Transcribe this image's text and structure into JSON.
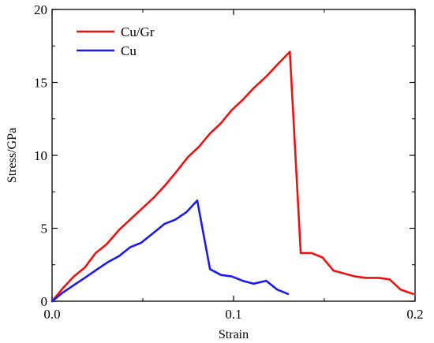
{
  "chart_data": {
    "type": "line",
    "title": "",
    "xlabel": "Strain",
    "ylabel": "Stress/GPa",
    "xlim": [
      0,
      0.2
    ],
    "ylim": [
      0,
      20
    ],
    "x_ticks": [
      0.0,
      0.1,
      0.2
    ],
    "x_tick_labels": [
      "0.0",
      "0.1",
      "0.2"
    ],
    "y_ticks": [
      0,
      5,
      10,
      15,
      20
    ],
    "y_tick_labels": [
      "0",
      "5",
      "10",
      "15",
      "20"
    ],
    "grid": false,
    "legend_position": "top-left",
    "series": [
      {
        "name": "Cu/Gr",
        "color": "#ee1111",
        "points": [
          [
            0.0,
            0.0
          ],
          [
            0.006,
            0.9
          ],
          [
            0.012,
            1.7
          ],
          [
            0.018,
            2.3
          ],
          [
            0.024,
            3.3
          ],
          [
            0.03,
            3.9
          ],
          [
            0.037,
            4.9
          ],
          [
            0.043,
            5.6
          ],
          [
            0.05,
            6.4
          ],
          [
            0.056,
            7.1
          ],
          [
            0.062,
            7.9
          ],
          [
            0.068,
            8.8
          ],
          [
            0.075,
            9.9
          ],
          [
            0.081,
            10.6
          ],
          [
            0.087,
            11.5
          ],
          [
            0.093,
            12.2
          ],
          [
            0.099,
            13.1
          ],
          [
            0.105,
            13.8
          ],
          [
            0.111,
            14.6
          ],
          [
            0.118,
            15.4
          ],
          [
            0.124,
            16.2
          ],
          [
            0.131,
            17.1
          ],
          [
            0.137,
            3.3
          ],
          [
            0.143,
            3.3
          ],
          [
            0.149,
            3.0
          ],
          [
            0.155,
            2.1
          ],
          [
            0.161,
            1.9
          ],
          [
            0.167,
            1.7
          ],
          [
            0.173,
            1.6
          ],
          [
            0.18,
            1.6
          ],
          [
            0.186,
            1.5
          ],
          [
            0.192,
            0.8
          ],
          [
            0.199,
            0.5
          ]
        ]
      },
      {
        "name": "Cu",
        "color": "#1a1aee",
        "points": [
          [
            0.0,
            0.0
          ],
          [
            0.006,
            0.6
          ],
          [
            0.012,
            1.1
          ],
          [
            0.018,
            1.6
          ],
          [
            0.025,
            2.2
          ],
          [
            0.031,
            2.7
          ],
          [
            0.037,
            3.1
          ],
          [
            0.043,
            3.7
          ],
          [
            0.049,
            4.0
          ],
          [
            0.056,
            4.7
          ],
          [
            0.062,
            5.3
          ],
          [
            0.068,
            5.6
          ],
          [
            0.074,
            6.1
          ],
          [
            0.08,
            6.9
          ],
          [
            0.087,
            2.2
          ],
          [
            0.093,
            1.8
          ],
          [
            0.099,
            1.7
          ],
          [
            0.105,
            1.4
          ],
          [
            0.111,
            1.2
          ],
          [
            0.118,
            1.4
          ],
          [
            0.124,
            0.8
          ],
          [
            0.13,
            0.5
          ]
        ]
      }
    ]
  }
}
